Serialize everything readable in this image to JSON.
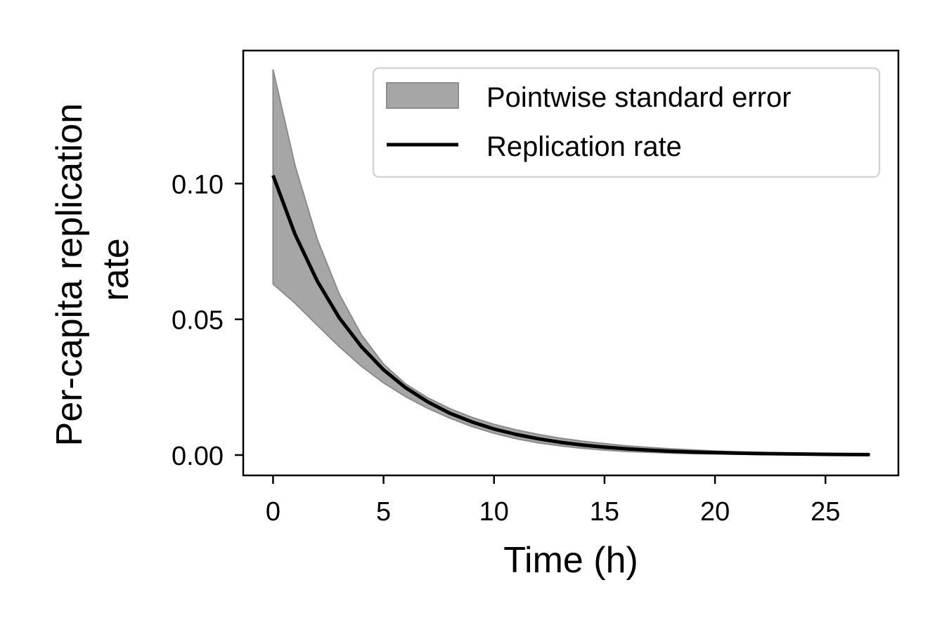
{
  "chart_data": {
    "type": "line",
    "title": "",
    "xlabel": "Time (h)",
    "ylabel_lines": [
      "Per-capita replication",
      "rate"
    ],
    "xlim": [
      -1.35,
      28.3
    ],
    "ylim": [
      -0.0075,
      0.149
    ],
    "xticks": [
      0,
      5,
      10,
      15,
      20,
      25
    ],
    "xtick_labels": [
      "0",
      "5",
      "10",
      "15",
      "20",
      "25"
    ],
    "yticks": [
      0.0,
      0.05,
      0.1
    ],
    "ytick_labels": [
      "0.00",
      "0.05",
      "0.10"
    ],
    "grid": false,
    "legend_position": "top-right",
    "series": [
      {
        "name": "Replication rate",
        "kind": "line",
        "color": "#000000",
        "x": [
          0,
          1,
          2,
          3,
          4,
          5,
          6,
          7,
          8,
          9,
          10,
          11,
          12,
          13,
          14,
          15,
          16,
          17,
          18,
          19,
          20,
          21,
          22,
          23,
          24,
          25,
          26,
          27
        ],
        "y": [
          0.103,
          0.0812,
          0.0641,
          0.0505,
          0.0399,
          0.0314,
          0.0248,
          0.0196,
          0.0154,
          0.0122,
          0.0096,
          0.0076,
          0.006,
          0.0047,
          0.0037,
          0.0029,
          0.0023,
          0.0018,
          0.0014,
          0.0011,
          0.0009,
          0.0007,
          0.00055,
          0.00044,
          0.00035,
          0.00027,
          0.00021,
          0.00017
        ]
      },
      {
        "name": "Pointwise standard error",
        "kind": "band",
        "color": "#a6a6a6",
        "edge_color": "#8c8c8c",
        "x": [
          0,
          1,
          2,
          3,
          4,
          5,
          6,
          7,
          8,
          9,
          10,
          11,
          12,
          13,
          14,
          15,
          16,
          17,
          18,
          19,
          20,
          21,
          22,
          23,
          24,
          25,
          26,
          27
        ],
        "upper": [
          0.142,
          0.1065,
          0.0795,
          0.0592,
          0.0443,
          0.0335,
          0.0262,
          0.0211,
          0.0171,
          0.0139,
          0.0113,
          0.0093,
          0.0076,
          0.0062,
          0.0051,
          0.0042,
          0.0034,
          0.0028,
          0.0023,
          0.0019,
          0.0015,
          0.0012,
          0.001,
          0.0008,
          0.0006,
          0.0005,
          0.0004,
          0.0003
        ],
        "lower": [
          0.063,
          0.0559,
          0.0478,
          0.0399,
          0.0327,
          0.0266,
          0.0215,
          0.0172,
          0.0136,
          0.0105,
          0.008,
          0.006,
          0.0045,
          0.0034,
          0.0025,
          0.0018,
          0.0013,
          0.001,
          0.0007,
          0.0005,
          0.0004,
          0.0003,
          0.0002,
          0.00015,
          0.0001,
          8e-05,
          6e-05,
          5e-05
        ]
      }
    ],
    "legend": [
      {
        "label": "Pointwise standard error",
        "kind": "band"
      },
      {
        "label": "Replication rate",
        "kind": "line"
      }
    ]
  }
}
